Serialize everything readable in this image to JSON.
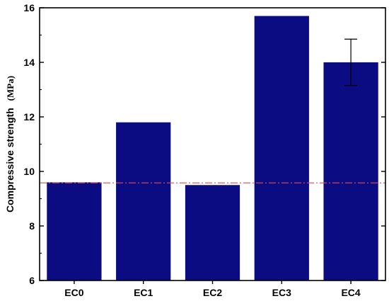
{
  "chart_data": {
    "type": "bar",
    "title": "",
    "xlabel": "",
    "ylabel": "Compressive strength",
    "ylabel_unit": "(MPa)",
    "categories": [
      "EC0",
      "EC1",
      "EC2",
      "EC3",
      "EC4"
    ],
    "values": [
      9.6,
      11.8,
      9.5,
      15.7,
      14.0
    ],
    "error_bars": [
      null,
      null,
      null,
      null,
      [
        13.15,
        14.85
      ]
    ],
    "reference_line": {
      "value": 9.58,
      "style": "dash-dot",
      "color": "#e34b4b"
    },
    "ylim": [
      6,
      16
    ],
    "yticks": [
      6,
      8,
      10,
      12,
      14,
      16
    ],
    "grid": false,
    "legend": "none",
    "bar_color": "#0c0c82",
    "axis_color": "#000000"
  }
}
